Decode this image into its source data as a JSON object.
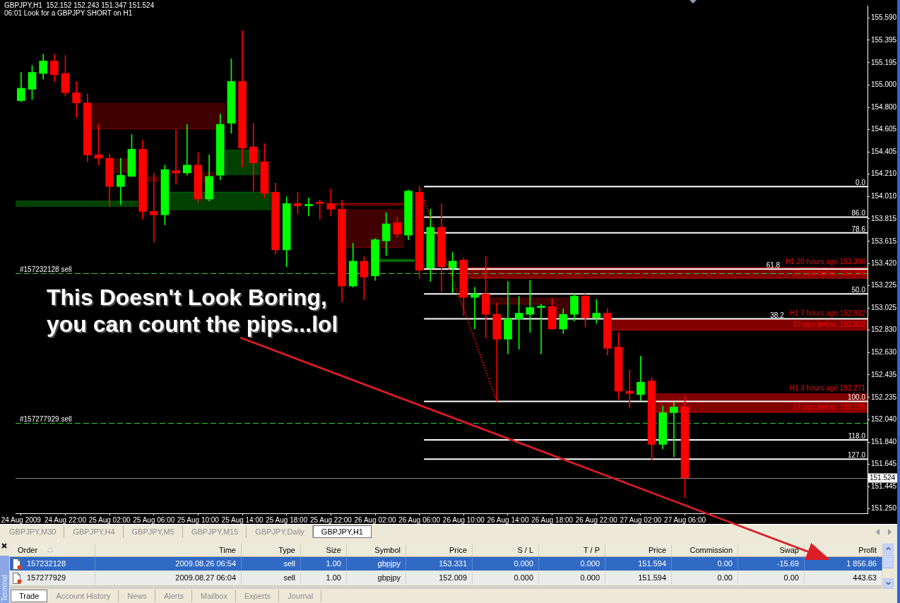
{
  "chart_data": [
    {
      "type": "candlestick",
      "title": "GBPJPY,H1  152.152 152.243 151.347 151.524",
      "subtitle": "06:01 Look for a GBPJPY SHORT on H1",
      "legend": "right",
      "x": [
        "2009-08-24T18:00",
        "2009-08-24T19:00",
        "2009-08-24T20:00",
        "2009-08-24T21:00",
        "2009-08-24T22:00",
        "2009-08-24T23:00",
        "2009-08-25T00:00",
        "2009-08-25T01:00",
        "2009-08-25T02:00",
        "2009-08-25T03:00",
        "2009-08-25T04:00",
        "2009-08-25T05:00",
        "2009-08-25T06:00",
        "2009-08-25T07:00",
        "2009-08-25T08:00",
        "2009-08-25T09:00",
        "2009-08-25T10:00",
        "2009-08-25T11:00",
        "2009-08-25T12:00",
        "2009-08-25T13:00",
        "2009-08-25T14:00",
        "2009-08-25T15:00",
        "2009-08-25T16:00",
        "2009-08-25T17:00",
        "2009-08-25T18:00",
        "2009-08-25T19:00",
        "2009-08-25T20:00",
        "2009-08-25T21:00",
        "2009-08-25T22:00",
        "2009-08-25T23:00",
        "2009-08-26T00:00",
        "2009-08-26T01:00",
        "2009-08-26T02:00",
        "2009-08-26T03:00",
        "2009-08-26T04:00",
        "2009-08-26T05:00",
        "2009-08-26T06:00",
        "2009-08-26T07:00",
        "2009-08-26T08:00",
        "2009-08-26T09:00",
        "2009-08-26T10:00",
        "2009-08-26T11:00",
        "2009-08-26T12:00",
        "2009-08-26T13:00",
        "2009-08-26T14:00",
        "2009-08-26T15:00",
        "2009-08-26T16:00",
        "2009-08-26T17:00",
        "2009-08-26T18:00",
        "2009-08-26T19:00",
        "2009-08-26T20:00",
        "2009-08-26T21:00",
        "2009-08-26T22:00",
        "2009-08-26T23:00",
        "2009-08-27T00:00",
        "2009-08-27T01:00",
        "2009-08-27T02:00",
        "2009-08-27T03:00",
        "2009-08-27T04:00",
        "2009-08-27T05:00",
        "2009-08-27T06:00"
      ],
      "ohlc": [
        [
          154.86,
          155.11,
          154.85,
          154.97
        ],
        [
          154.96,
          155.17,
          154.87,
          155.11
        ],
        [
          155.1,
          155.27,
          155.05,
          155.21
        ],
        [
          155.21,
          155.27,
          155.03,
          155.09
        ],
        [
          155.1,
          155.26,
          154.9,
          154.93
        ],
        [
          154.93,
          155.03,
          154.71,
          154.84
        ],
        [
          154.84,
          154.92,
          154.32,
          154.38
        ],
        [
          154.38,
          154.65,
          154.29,
          154.35
        ],
        [
          154.35,
          154.39,
          153.92,
          154.1
        ],
        [
          154.1,
          154.35,
          153.94,
          154.2
        ],
        [
          154.19,
          154.56,
          154.19,
          154.43
        ],
        [
          154.43,
          154.51,
          153.81,
          153.88
        ],
        [
          153.88,
          154.22,
          153.61,
          153.85
        ],
        [
          153.85,
          154.29,
          153.76,
          154.25
        ],
        [
          154.24,
          154.6,
          154.12,
          154.22
        ],
        [
          154.22,
          154.65,
          154.2,
          154.29
        ],
        [
          154.29,
          154.4,
          153.96,
          153.99
        ],
        [
          153.99,
          154.38,
          153.97,
          154.19
        ],
        [
          154.2,
          154.74,
          154.16,
          154.65
        ],
        [
          154.66,
          155.23,
          154.57,
          155.03
        ],
        [
          155.03,
          155.48,
          154.27,
          154.44
        ],
        [
          154.45,
          154.66,
          154.06,
          154.31
        ],
        [
          154.32,
          154.48,
          154.0,
          154.04
        ],
        [
          154.05,
          154.13,
          153.5,
          153.54
        ],
        [
          153.54,
          154.01,
          153.39,
          153.95
        ],
        [
          153.95,
          154.05,
          153.86,
          153.93
        ],
        [
          153.93,
          154.0,
          153.84,
          153.93
        ],
        [
          153.96,
          153.98,
          153.81,
          153.95
        ],
        [
          153.95,
          154.08,
          153.84,
          153.9
        ],
        [
          153.9,
          153.98,
          153.08,
          153.22
        ],
        [
          153.22,
          153.6,
          153.21,
          153.44
        ],
        [
          153.44,
          153.48,
          153.1,
          153.3
        ],
        [
          153.31,
          153.64,
          153.27,
          153.63
        ],
        [
          153.62,
          153.87,
          153.49,
          153.77
        ],
        [
          153.78,
          153.83,
          153.65,
          153.68
        ],
        [
          153.67,
          154.07,
          153.63,
          154.06
        ],
        [
          154.05,
          154.1,
          153.29,
          153.36
        ],
        [
          153.38,
          153.9,
          153.26,
          153.74
        ],
        [
          153.74,
          153.95,
          153.17,
          153.39
        ],
        [
          153.38,
          153.52,
          153.16,
          153.44
        ],
        [
          153.45,
          153.47,
          152.96,
          153.12
        ],
        [
          153.12,
          153.21,
          152.84,
          153.15
        ],
        [
          153.15,
          153.48,
          152.76,
          152.97
        ],
        [
          152.97,
          153.07,
          152.2,
          152.75
        ],
        [
          152.75,
          153.26,
          152.62,
          152.93
        ],
        [
          152.93,
          153.13,
          152.66,
          152.98
        ],
        [
          152.97,
          153.27,
          152.81,
          153.03
        ],
        [
          153.03,
          153.06,
          152.62,
          153.04
        ],
        [
          153.04,
          153.11,
          152.84,
          152.84
        ],
        [
          152.84,
          153.02,
          152.8,
          152.97
        ],
        [
          152.97,
          153.15,
          152.91,
          153.13
        ],
        [
          153.13,
          153.15,
          152.86,
          152.94
        ],
        [
          152.94,
          153.1,
          152.89,
          152.98
        ],
        [
          152.98,
          153.02,
          152.61,
          152.67
        ],
        [
          152.68,
          152.81,
          152.22,
          152.29
        ],
        [
          152.29,
          152.48,
          152.14,
          152.27
        ],
        [
          152.26,
          152.6,
          152.21,
          152.37
        ],
        [
          152.38,
          152.41,
          151.68,
          151.82
        ],
        [
          151.82,
          152.16,
          151.78,
          152.1
        ],
        [
          152.1,
          152.19,
          151.71,
          152.15
        ],
        [
          152.152,
          152.243,
          151.347,
          151.524
        ]
      ],
      "colors": [
        "#00ff00",
        "#00ff00",
        "#00ff00",
        "#ff0000",
        "#ff0000",
        "#ff0000",
        "#ff0000",
        "#ff0000",
        "#ff0000",
        "#00ff00",
        "#00ff00",
        "#ff0000",
        "#ff0000",
        "#00ff00",
        "#ff0000",
        "#00ff00",
        "#ff0000",
        "#00ff00",
        "#00ff00",
        "#00ff00",
        "#ff0000",
        "#ff0000",
        "#ff0000",
        "#ff0000",
        "#00ff00",
        "#ff0000",
        "#00ff00",
        "#ff0000",
        "#ff0000",
        "#ff0000",
        "#00ff00",
        "#ff0000",
        "#00ff00",
        "#00ff00",
        "#ff0000",
        "#00ff00",
        "#ff0000",
        "#00ff00",
        "#ff0000",
        "#00ff00",
        "#ff0000",
        "#00ff00",
        "#ff0000",
        "#ff0000",
        "#00ff00",
        "#00ff00",
        "#00ff00",
        "#00ff00",
        "#ff0000",
        "#00ff00",
        "#00ff00",
        "#ff0000",
        "#00ff00",
        "#ff0000",
        "#ff0000",
        "#ff0000",
        "#00ff00",
        "#ff0000",
        "#00ff00",
        "#00ff00",
        "#ff0000"
      ],
      "xlim": [
        "2009-08-24T17:30",
        "2009-08-27T22:30"
      ],
      "xticks": [
        {
          "value": "2009-08-24T18:00",
          "label": "24 Aug 2009"
        },
        {
          "value": "2009-08-24T22:00",
          "label": "24 Aug 22:00"
        },
        {
          "value": "2009-08-25T02:00",
          "label": "25 Aug 02:00"
        },
        {
          "value": "2009-08-25T06:00",
          "label": "25 Aug 06:00"
        },
        {
          "value": "2009-08-25T10:00",
          "label": "25 Aug 10:00"
        },
        {
          "value": "2009-08-25T14:00",
          "label": "25 Aug 14:00"
        },
        {
          "value": "2009-08-25T18:00",
          "label": "25 Aug 18:00"
        },
        {
          "value": "2009-08-25T22:00",
          "label": "25 Aug 22:00"
        },
        {
          "value": "2009-08-26T02:00",
          "label": "26 Aug 02:00"
        },
        {
          "value": "2009-08-26T06:00",
          "label": "26 Aug 06:00"
        },
        {
          "value": "2009-08-26T10:00",
          "label": "26 Aug 10:00"
        },
        {
          "value": "2009-08-26T14:00",
          "label": "26 Aug 14:00"
        },
        {
          "value": "2009-08-26T18:00",
          "label": "26 Aug 18:00"
        },
        {
          "value": "2009-08-26T22:00",
          "label": "26 Aug 22:00"
        },
        {
          "value": "2009-08-27T02:00",
          "label": "27 Aug 02:00"
        },
        {
          "value": "2009-08-27T06:00",
          "label": "27 Aug 06:00"
        }
      ],
      "ylim": [
        151.21,
        155.7
      ],
      "yticks": [
        {
          "value": 155.59,
          "label": "155.590"
        },
        155.395,
        155.195,
        {
          "value": 155.0,
          "label": "155.000"
        },
        {
          "value": 154.8,
          "label": "154.800"
        },
        154.605,
        154.405,
        {
          "value": 154.21,
          "label": "154.210"
        },
        {
          "value": 154.01,
          "label": "154.010"
        },
        153.815,
        153.615,
        {
          "value": 153.42,
          "label": "153.420"
        },
        153.225,
        153.025,
        {
          "value": 152.83,
          "label": "152.830"
        },
        {
          "value": 152.63,
          "label": "152.630"
        },
        152.435,
        152.235,
        {
          "value": 152.04,
          "label": "152.040"
        },
        {
          "value": 151.84,
          "label": "151.840"
        },
        151.645,
        151.445,
        {
          "value": 151.25,
          "label": "151.250"
        }
      ],
      "series": [
        {
          "type": "line",
          "color": "#800000",
          "x": [
            "2009-08-25T00:25",
            "2009-08-25T12:30"
          ],
          "values": [
            154.61,
            154.61
          ],
          "lower": [
            154.61,
            154.61
          ],
          "upper": [
            154.84,
            154.84
          ]
        },
        {
          "type": "line",
          "color": "#800000",
          "x": [
            "2009-08-25T02:25",
            "2009-08-25T04:30"
          ],
          "values": [
            154.23,
            154.23
          ],
          "lower": [
            154.23,
            154.23
          ],
          "upper": [
            154.35,
            154.35
          ]
        },
        {
          "type": "line",
          "color": "#800000",
          "x": [
            "2009-08-25T05:25",
            "2009-08-25T06:30"
          ],
          "values": [
            154.15,
            154.15
          ],
          "lower": [
            154.15,
            154.15
          ],
          "upper": [
            154.19,
            154.19
          ]
        },
        {
          "type": "line",
          "color": "#800000",
          "x": [
            "2009-08-25T10:25",
            "2009-08-25T11:35"
          ],
          "values": [
            154.14,
            154.14
          ],
          "lower": [
            154.14,
            154.14
          ],
          "upper": [
            154.23,
            154.23
          ]
        },
        {
          "type": "line",
          "color": "#008000",
          "x": [
            "2009-08-25T12:25",
            "2009-08-25T15:35"
          ],
          "values": [
            154.42,
            154.42
          ],
          "lower": [
            154.2,
            154.2
          ],
          "upper": [
            154.42,
            154.42
          ]
        },
        {
          "type": "line",
          "color": "#008000",
          "x": [
            "2009-08-25T07:25",
            "2009-08-25T16:35"
          ],
          "values": [
            154.05,
            154.05
          ],
          "lower": [
            153.89,
            153.89
          ],
          "upper": [
            154.05,
            154.05
          ]
        },
        {
          "type": "line",
          "color": "#008000",
          "x": [
            "2009-08-24T17:30",
            "2009-08-25T04:35"
          ],
          "values": [
            153.97,
            153.97
          ],
          "lower": [
            153.92,
            153.92
          ],
          "upper": [
            153.97,
            153.97
          ]
        },
        {
          "type": "line",
          "color": "#800000",
          "x": [
            "2009-08-25T23:25",
            "2009-08-26T04:35"
          ],
          "values": [
            153.56,
            153.56
          ],
          "lower": [
            153.56,
            153.56
          ],
          "upper": [
            153.9,
            153.9
          ]
        },
        {
          "type": "line",
          "color": "#c00000",
          "x": [
            "2009-08-25T22:25",
            "2009-08-26T04:35"
          ],
          "values": [
            153.95,
            153.95
          ],
          "lower": [
            153.93,
            153.93
          ],
          "upper": [
            153.95,
            153.95
          ]
        },
        {
          "type": "line",
          "color": "#00c000",
          "x": [
            "2009-08-26T02:25",
            "2009-08-26T05:35"
          ],
          "values": [
            153.44,
            153.44
          ],
          "lower": [
            153.44,
            153.44
          ],
          "upper": [
            153.46,
            153.46
          ]
        },
        {
          "type": "line",
          "color": "#800000",
          "x": [
            "2009-08-26T12:25",
            "2009-08-26T18:25",
            "2009-08-26T18:25",
            "2009-08-26T19:35"
          ],
          "values": [
            153.06,
            153.06,
            152.95,
            152.95
          ],
          "lower": [
            153.06,
            153.06,
            152.95,
            152.95
          ],
          "upper": [
            153.12,
            153.12,
            153.12,
            153.12
          ]
        },
        {
          "type": "line",
          "color": "#ff0000",
          "x": [
            "2009-08-26T10:25",
            "2009-08-27T22:30"
          ],
          "values": [
            153.29,
            153.29
          ],
          "lower": [
            153.29,
            153.29
          ],
          "upper": [
            153.39,
            153.39
          ]
        },
        {
          "type": "line",
          "color": "#ff0000",
          "x": [
            "2009-08-26T23:25",
            "2009-08-27T22:30"
          ],
          "values": [
            152.832,
            152.832
          ],
          "lower": [
            152.832,
            152.832
          ],
          "upper": [
            152.932,
            152.932
          ]
        },
        {
          "type": "line",
          "color": "#ff0000",
          "x": [
            "2009-08-27T03:25",
            "2009-08-27T22:30"
          ],
          "values": [
            152.105,
            152.105
          ],
          "lower": [
            152.105,
            152.105
          ],
          "upper": [
            152.271,
            152.271
          ]
        },
        {
          "type": "line",
          "name": "0.0",
          "color": "#ffffff",
          "x": [
            "2009-08-26T06:25",
            "2009-08-27T22:30"
          ],
          "values": [
            154.1,
            154.1
          ]
        },
        {
          "type": "line",
          "name": "86.0",
          "color": "#ffffff",
          "x": [
            "2009-08-26T06:25",
            "2009-08-27T22:30"
          ],
          "values": [
            153.83,
            153.83
          ]
        },
        {
          "type": "line",
          "name": "78.6",
          "color": "#ffffff",
          "x": [
            "2009-08-26T06:25",
            "2009-08-27T22:30"
          ],
          "values": [
            153.69,
            153.69
          ]
        },
        {
          "type": "line",
          "name": "61.8",
          "color": "#ffffff",
          "x": [
            "2009-08-26T06:25",
            "2009-08-27T22:30"
          ],
          "values": [
            153.37,
            153.37
          ]
        },
        {
          "type": "line",
          "name": "50.0",
          "color": "#ffffff",
          "x": [
            "2009-08-26T06:25",
            "2009-08-27T22:30"
          ],
          "values": [
            153.15,
            153.15
          ]
        },
        {
          "type": "line",
          "name": "38.2",
          "color": "#ffffff",
          "x": [
            "2009-08-26T06:25",
            "2009-08-27T22:30"
          ],
          "values": [
            152.93,
            152.93
          ]
        },
        {
          "type": "line",
          "name": "100.0",
          "color": "#ffffff",
          "x": [
            "2009-08-26T06:25",
            "2009-08-27T22:30"
          ],
          "values": [
            152.2,
            152.2
          ]
        },
        {
          "type": "line",
          "name": "118.0",
          "color": "#ffffff",
          "x": [
            "2009-08-26T06:25",
            "2009-08-27T22:30"
          ],
          "values": [
            151.86,
            151.86
          ]
        },
        {
          "type": "line",
          "name": "127.0",
          "color": "#ffffff",
          "x": [
            "2009-08-26T06:25",
            "2009-08-27T22:30"
          ],
          "values": [
            151.69,
            151.69
          ]
        },
        {
          "type": "line",
          "color": "#ff0000",
          "line_style": "dotted",
          "x": [
            "2009-08-26T06:00",
            "2009-08-26T13:00"
          ],
          "values": [
            154.1,
            152.2
          ]
        }
      ],
      "ref_lines": [
        {
          "axis": "y",
          "value": 153.331,
          "label": "#157232128 sell",
          "color": "#32cd32",
          "line_style": "dashed"
        },
        {
          "axis": "y",
          "value": 152.009,
          "label": "#157277929 sell",
          "color": "#32cd32",
          "line_style": "dashed"
        },
        {
          "axis": "y",
          "value": 151.524,
          "label": "151.524",
          "color": "#808080",
          "line_style": "solid"
        }
      ],
      "annotations": [
        "This Doesn't Look Boring, you can count the pips...lol",
        {
          "text": "H1 20 hours ago 153.390",
          "x": "2009-08-27T22:30",
          "y": 153.39
        },
        {
          "text": "10 pips below: 153.290",
          "x": "2009-08-27T22:30",
          "y": 153.29
        },
        {
          "text": "H1 7 hours ago 152.932",
          "x": "2009-08-27T22:30",
          "y": 152.932
        },
        {
          "text": "10 pips below: 152.832",
          "x": "2009-08-27T22:30",
          "y": 152.832
        },
        {
          "text": "H1 3 hours ago 152.271",
          "x": "2009-08-27T22:30",
          "y": 152.271
        },
        {
          "text": "17 pips below: 152.105",
          "x": "2009-08-27T22:30",
          "y": 152.105
        }
      ]
    },
    {
      "type": "other",
      "annotations": [
        "GBPJPY,M30",
        "GBPJPY,H4",
        "GBPJPY,M5",
        "GBPJPY,M15",
        "GBPJPY,Daily",
        "GBPJPY,H1"
      ]
    },
    {
      "type": "other",
      "title": "Terminal",
      "categories": [
        "Order",
        "Time",
        "Type",
        "Size",
        "Symbol",
        "Price",
        "S / L",
        "T / P",
        "Price",
        "Commission",
        "Swap",
        "Profit"
      ],
      "cell_labels": [
        [
          "157232128",
          "2009.08.26 06:54",
          "sell",
          "1.00",
          "gbpjpy",
          "153.331",
          "0.000",
          "0.000",
          "151.594",
          "0.00",
          "-15.69",
          "1 856.86"
        ],
        [
          "157277929",
          "2009.08.27 06:04",
          "sell",
          "1.00",
          "gbpjpy",
          "152.009",
          "0.000",
          "0.000",
          "151.594",
          "0.00",
          "0.00",
          "443.63"
        ]
      ],
      "annotations": [
        "Trade",
        "Account History",
        "News",
        "Alerts",
        "Mailbox",
        "Experts",
        "Journal"
      ]
    }
  ]
}
